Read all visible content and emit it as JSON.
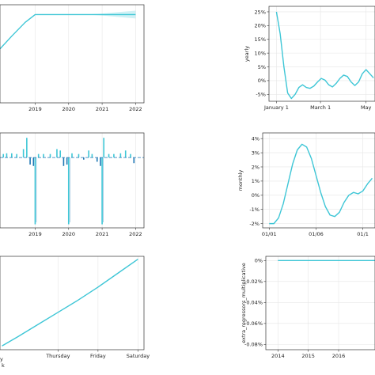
{
  "chart_data": [
    {
      "type": "line",
      "panel": "trend",
      "x_ticks": [
        "2019",
        "2020",
        "2021",
        "2022"
      ],
      "x_tick_values": [
        2019,
        2020,
        2021,
        2022
      ],
      "xlim": [
        2017.95,
        2022.25
      ],
      "ylim": [
        0,
        1
      ],
      "series": [
        {
          "x": [
            2017.95,
            2018.3,
            2018.7,
            2019.0,
            2019.5,
            2020.0,
            2021.0,
            2022.0
          ],
          "y": [
            0.55,
            0.68,
            0.82,
            0.9,
            0.9,
            0.9,
            0.9,
            0.9
          ]
        }
      ],
      "uncertainty_upper": {
        "x": [
          2020.5,
          2021.0,
          2021.5,
          2022.0
        ],
        "y": [
          0.9,
          0.91,
          0.925,
          0.94
        ]
      },
      "uncertainty_lower": {
        "x": [
          2020.5,
          2021.0,
          2021.5,
          2022.0
        ],
        "y": [
          0.9,
          0.89,
          0.875,
          0.86
        ]
      },
      "grid": true,
      "color": "#3ec6d6"
    },
    {
      "type": "line",
      "panel": "yearly",
      "ylabel": "yearly",
      "x_ticks": [
        "January 1",
        "March 1",
        "May"
      ],
      "x_tick_values": [
        0,
        59,
        120
      ],
      "xlim": [
        -10,
        132
      ],
      "y_ticks": [
        "-5%",
        "0%",
        "5%",
        "10%",
        "15%",
        "20%",
        "25%"
      ],
      "y_tick_values": [
        -5,
        0,
        5,
        10,
        15,
        20,
        25
      ],
      "ylim": [
        -7.5,
        27
      ],
      "series": [
        {
          "x": [
            0,
            5,
            10,
            15,
            20,
            25,
            30,
            35,
            40,
            45,
            50,
            55,
            60,
            65,
            70,
            75,
            80,
            85,
            90,
            95,
            100,
            105,
            110,
            115,
            120,
            125,
            130
          ],
          "y": [
            25,
            17,
            5,
            -4.5,
            -6.5,
            -5,
            -2.5,
            -1.5,
            -2.5,
            -2.8,
            -2.0,
            -0.5,
            0.8,
            0.2,
            -1.5,
            -2.3,
            -1.0,
            0.8,
            2.0,
            1.5,
            -0.5,
            -1.8,
            -0.5,
            2.5,
            4.0,
            2.5,
            1.0
          ]
        }
      ],
      "grid": true,
      "color": "#3ec6d6"
    },
    {
      "type": "line",
      "panel": "holidays",
      "x_ticks": [
        "2019",
        "2020",
        "2021",
        "2022"
      ],
      "x_tick_values": [
        2019,
        2020,
        2021,
        2022
      ],
      "xlim": [
        2017.95,
        2022.25
      ],
      "ylim": [
        -1.0,
        0.35
      ],
      "series": [
        {
          "spikes": [
            {
              "x": 2018.05,
              "y": 0.05
            },
            {
              "x": 2018.15,
              "y": 0.06
            },
            {
              "x": 2018.3,
              "y": 0.06
            },
            {
              "x": 2018.45,
              "y": 0.05
            },
            {
              "x": 2018.65,
              "y": 0.12
            },
            {
              "x": 2018.75,
              "y": 0.28
            },
            {
              "x": 2018.85,
              "y": -0.1
            },
            {
              "x": 2018.95,
              "y": -0.12
            },
            {
              "x": 2019.0,
              "y": -0.95
            },
            {
              "x": 2019.1,
              "y": 0.05
            },
            {
              "x": 2019.25,
              "y": 0.05
            },
            {
              "x": 2019.45,
              "y": 0.05
            },
            {
              "x": 2019.65,
              "y": 0.12
            },
            {
              "x": 2019.75,
              "y": 0.1
            },
            {
              "x": 2019.85,
              "y": -0.12
            },
            {
              "x": 2019.95,
              "y": -0.1
            },
            {
              "x": 2020.0,
              "y": -0.95
            },
            {
              "x": 2020.1,
              "y": 0.06
            },
            {
              "x": 2020.3,
              "y": 0.05
            },
            {
              "x": 2020.45,
              "y": -0.03
            },
            {
              "x": 2020.6,
              "y": 0.1
            },
            {
              "x": 2020.7,
              "y": 0.05
            },
            {
              "x": 2020.85,
              "y": -0.06
            },
            {
              "x": 2020.95,
              "y": -0.12
            },
            {
              "x": 2021.0,
              "y": -0.95
            },
            {
              "x": 2021.05,
              "y": 0.28
            },
            {
              "x": 2021.2,
              "y": 0.05
            },
            {
              "x": 2021.35,
              "y": 0.05
            },
            {
              "x": 2021.55,
              "y": 0.06
            },
            {
              "x": 2021.7,
              "y": 0.1
            },
            {
              "x": 2021.85,
              "y": 0.05
            },
            {
              "x": 2021.95,
              "y": -0.08
            }
          ]
        }
      ],
      "grid": true,
      "color": "#3ec6d6",
      "dark_color": "#1f77b4"
    },
    {
      "type": "line",
      "panel": "monthly",
      "ylabel": "monthly",
      "x_ticks": [
        "01/01",
        "01/06",
        "01/1"
      ],
      "x_tick_values": [
        1,
        6,
        11
      ],
      "xlim": [
        0.3,
        12.3
      ],
      "y_ticks": [
        "-2%",
        "-1%",
        "0%",
        "1%",
        "2%",
        "3%",
        "4%"
      ],
      "y_tick_values": [
        -2,
        -1,
        0,
        1,
        2,
        3,
        4
      ],
      "ylim": [
        -2.3,
        4.4
      ],
      "series": [
        {
          "x": [
            1,
            1.5,
            2,
            2.5,
            3,
            3.5,
            4,
            4.5,
            5,
            5.5,
            6,
            6.5,
            7,
            7.5,
            8,
            8.5,
            9,
            9.5,
            10,
            10.5,
            11,
            11.5,
            12
          ],
          "y": [
            -2.0,
            -2.0,
            -1.6,
            -0.6,
            0.8,
            2.2,
            3.2,
            3.6,
            3.4,
            2.6,
            1.4,
            0.2,
            -0.8,
            -1.4,
            -1.5,
            -1.2,
            -0.5,
            0.0,
            0.2,
            0.1,
            0.3,
            0.8,
            1.2
          ]
        }
      ],
      "grid": true,
      "color": "#3ec6d6"
    },
    {
      "type": "line",
      "panel": "weekly",
      "x_ticks": [
        "Thursday",
        "Friday",
        "Saturday"
      ],
      "x_tick_values": [
        4,
        5,
        6
      ],
      "xlim": [
        2.55,
        6.15
      ],
      "ylim": [
        0,
        1
      ],
      "series": [
        {
          "x": [
            2.6,
            3.0,
            3.5,
            4.0,
            4.5,
            5.0,
            5.5,
            6.0
          ],
          "y": [
            0.04,
            0.14,
            0.27,
            0.4,
            0.53,
            0.67,
            0.82,
            0.97
          ]
        }
      ],
      "grid": true,
      "color": "#3ec6d6"
    },
    {
      "type": "line",
      "panel": "extra_regressors_multiplicative",
      "ylabel": "extra_regressors_multiplicative",
      "x_ticks": [
        "2014",
        "2015",
        "2016"
      ],
      "x_tick_values": [
        2014,
        2015,
        2016
      ],
      "xlim": [
        2013.6,
        2017.2
      ],
      "y_ticks": [
        "-0.08%",
        "-0.06%",
        "-0.04%",
        "-0.02%",
        "0%"
      ],
      "y_tick_values": [
        -0.08,
        -0.06,
        -0.04,
        -0.02,
        0
      ],
      "ylim": [
        -0.085,
        0.004
      ],
      "series": [
        {
          "x": [
            2014,
            2015,
            2016,
            2017.2
          ],
          "y": [
            0,
            0,
            0,
            0
          ]
        }
      ],
      "grid": true,
      "color": "#3ec6d6"
    }
  ],
  "fragments": {
    "weekly_xaxis_cut_label_1": "y",
    "weekly_xaxis_cut_label_2": "k"
  }
}
